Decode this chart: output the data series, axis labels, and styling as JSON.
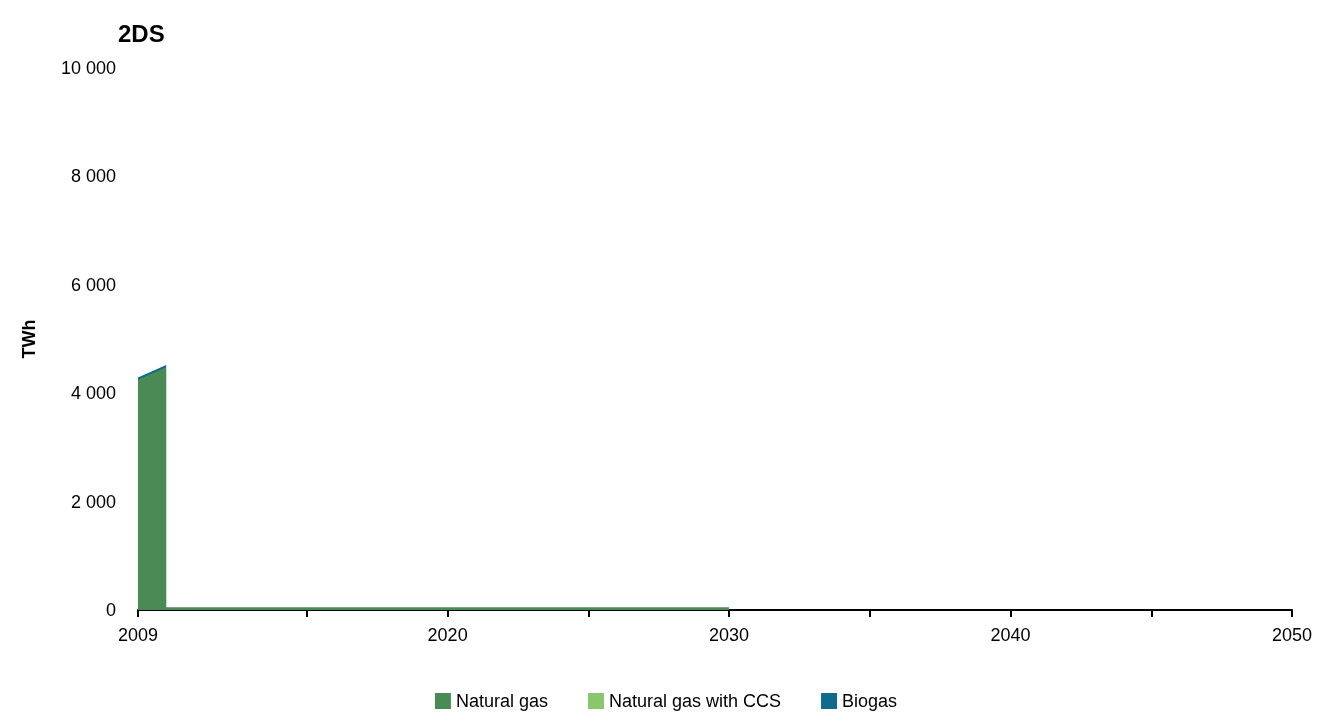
{
  "chart_data": {
    "type": "area",
    "title": "2DS",
    "ylabel": "TWh",
    "stacked": true,
    "x": [
      2009,
      2010,
      2010,
      2030,
      2030,
      2050
    ],
    "series": [
      {
        "name": "Natural gas",
        "color": "#4a8a55",
        "values": [
          4250,
          4480,
          50,
          50,
          0,
          0
        ]
      },
      {
        "name": "Natural gas with CCS",
        "color": "#8cc66c",
        "values": [
          null,
          null,
          null,
          null,
          null,
          null
        ]
      },
      {
        "name": "Biogas",
        "color": "#0f6a8e",
        "values": [
          40,
          40,
          null,
          null,
          null,
          null
        ]
      }
    ],
    "xlim": [
      2009,
      2050
    ],
    "xticks": [
      2009,
      {
        "value": 2015,
        "label": null
      },
      2020,
      {
        "value": 2025,
        "label": null
      },
      2030,
      {
        "value": 2035,
        "label": null
      },
      2040,
      {
        "value": 2045,
        "label": null
      },
      2050
    ],
    "ylim": [
      0,
      10000
    ],
    "yticks": [
      0,
      {
        "value": 2000,
        "label": "2 000"
      },
      {
        "value": 4000,
        "label": "4 000"
      },
      {
        "value": 6000,
        "label": "6 000"
      },
      {
        "value": 8000,
        "label": "8 000"
      },
      {
        "value": 10000,
        "label": "10 000"
      }
    ],
    "legend": "bottom"
  }
}
